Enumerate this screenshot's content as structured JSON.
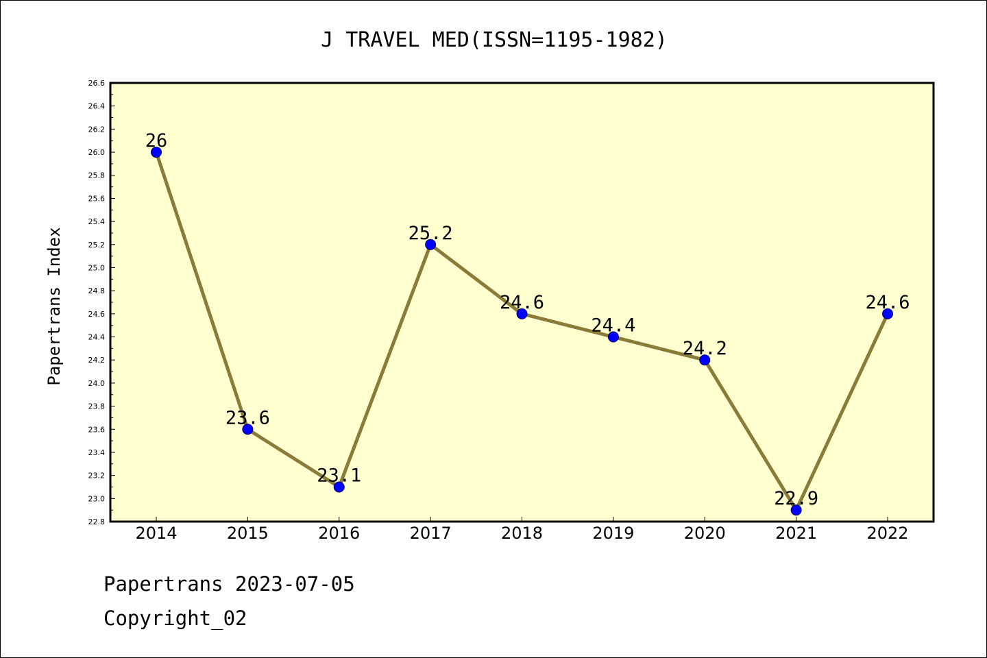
{
  "chart_data": {
    "type": "line",
    "title": "J TRAVEL MED(ISSN=1195-1982)",
    "xlabel": "",
    "ylabel": "Papertrans Index",
    "categories": [
      "2014",
      "2015",
      "2016",
      "2017",
      "2018",
      "2019",
      "2020",
      "2021",
      "2022"
    ],
    "series": [
      {
        "values": [
          26.0,
          23.6,
          23.1,
          25.2,
          24.6,
          24.4,
          24.2,
          22.9,
          24.6
        ]
      }
    ],
    "data_labels": [
      "26",
      "23.6",
      "23.1",
      "25.2",
      "24.6",
      "24.4",
      "24.2",
      "22.9",
      "24.6"
    ],
    "ylim": [
      22.8,
      26.6
    ],
    "ytick_step": 0.2,
    "ytick_labels": [
      "22.8",
      "23.0",
      "23.2",
      "23.4",
      "23.6",
      "23.8",
      "24.0",
      "24.2",
      "24.4",
      "24.6",
      "24.8",
      "25.0",
      "25.2",
      "25.4",
      "25.6",
      "25.8",
      "26.0",
      "26.2",
      "26.4",
      "26.6"
    ],
    "grid": false,
    "legend": "none",
    "colors": {
      "plot_background": "#ffffd0",
      "line": "#8b7b3a",
      "marker": "#0000ff",
      "marker_edge": "#00006a",
      "axes": "#000000"
    }
  },
  "footer": {
    "line1": "Papertrans 2023-07-05",
    "line2": "Copyright_02"
  }
}
